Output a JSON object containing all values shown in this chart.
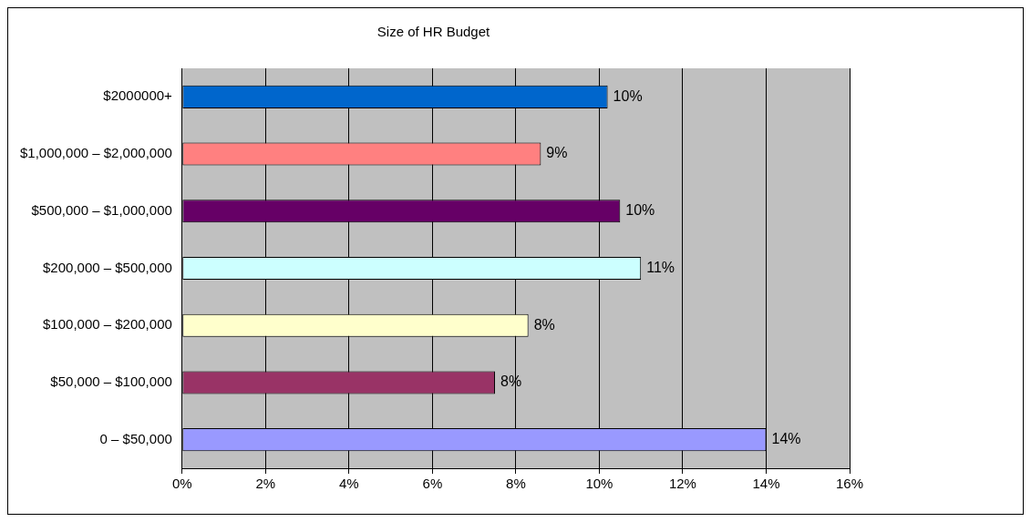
{
  "chart_data": {
    "type": "bar",
    "orientation": "horizontal",
    "title": "Size of HR Budget",
    "categories": [
      "$2000000+",
      "$1,000,000 – $2,000,000",
      "$500,000 – $1,000,000",
      "$200,000 – $500,000",
      "$100,000 – $200,000",
      "$50,000 – $100,000",
      "0 – $50,000"
    ],
    "values": [
      10.2,
      8.6,
      10.5,
      11.0,
      8.3,
      7.5,
      14.0
    ],
    "colors": [
      "#0066cc",
      "#ff8080",
      "#660066",
      "#ccffff",
      "#ffffcc",
      "#993366",
      "#9999ff"
    ],
    "value_labels": [
      "10%",
      "9%",
      "10%",
      "11%",
      "8%",
      "8%",
      "14%"
    ],
    "xlim": [
      0,
      16
    ],
    "xticks": [
      {
        "value": 0,
        "label": "0%"
      },
      {
        "value": 2,
        "label": "2%"
      },
      {
        "value": 4,
        "label": "4%"
      },
      {
        "value": 6,
        "label": "6%"
      },
      {
        "value": 8,
        "label": "8%"
      },
      {
        "value": 10,
        "label": "10%"
      },
      {
        "value": 12,
        "label": "12%"
      },
      {
        "value": 14,
        "label": "14%"
      },
      {
        "value": 16,
        "label": "16%"
      }
    ],
    "grid": "x",
    "legend": false
  }
}
